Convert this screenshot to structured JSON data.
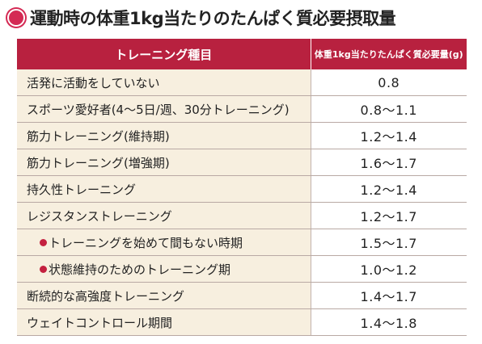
{
  "title": "運動時の体重1kg当たりのたんぱく質必要摂取量",
  "colors": {
    "accent": "#b8213f",
    "label_background": "#f7efdf",
    "title_dot": "#d42a54"
  },
  "icons": {
    "title_marker": "circle-marker-icon",
    "sub_item_bullet": "red-bullet-icon"
  },
  "table": {
    "headers": {
      "training_type": "トレーニング種目",
      "protein_amount": "体重1kg当たりたんぱく質必要量(g)"
    },
    "rows": [
      {
        "label": "活発に活動をしていない",
        "value": "0.8",
        "sub": false
      },
      {
        "label": "スポーツ愛好者(4〜5日/週、30分トレーニング)",
        "value": "0.8〜1.1",
        "sub": false
      },
      {
        "label": "筋力トレーニング(維持期)",
        "value": "1.2〜1.4",
        "sub": false
      },
      {
        "label": "筋力トレーニング(増強期)",
        "value": "1.6〜1.7",
        "sub": false
      },
      {
        "label": "持久性トレーニング",
        "value": "1.2〜1.4",
        "sub": false
      },
      {
        "label": "レジスタンストレーニング",
        "value": "1.2〜1.7",
        "sub": false
      },
      {
        "label": "トレーニングを始めて間もない時期",
        "value": "1.5〜1.7",
        "sub": true
      },
      {
        "label": "状態維持のためのトレーニング期",
        "value": "1.0〜1.2",
        "sub": true
      },
      {
        "label": "断続的な高強度トレーニング",
        "value": "1.4〜1.7",
        "sub": false
      },
      {
        "label": "ウェイトコントロール期間",
        "value": "1.4〜1.8",
        "sub": false
      }
    ]
  }
}
